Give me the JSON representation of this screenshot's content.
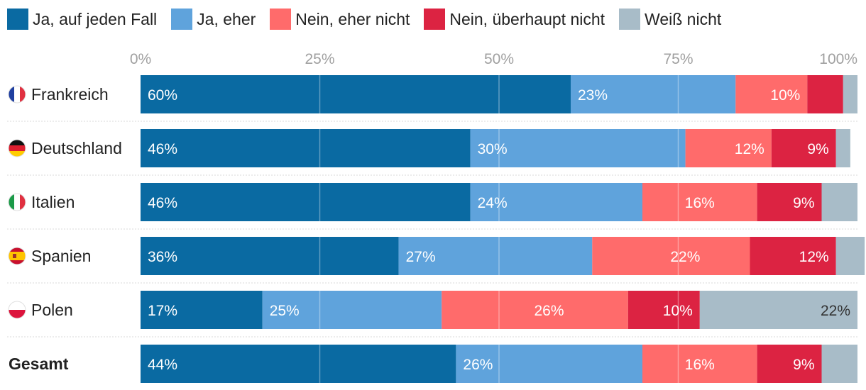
{
  "colors": {
    "ja_auf_jeden_fall": "#0a6aa2",
    "ja_eher": "#5fa3dc",
    "nein_eher_nicht": "#ff6b6b",
    "nein_ueberhaupt_nicht": "#dc2342",
    "weiss_nicht": "#a8bcc8",
    "gridline": "#e4e4e4",
    "tick_text": "#a0a0a0"
  },
  "chart_data": {
    "type": "bar",
    "orientation": "horizontal",
    "stacked": true,
    "title": "",
    "xlabel": "",
    "ylabel": "",
    "xlim": [
      0,
      100
    ],
    "x_ticks": [
      "0%",
      "25%",
      "50%",
      "75%",
      "100%"
    ],
    "legend_position": "top-left",
    "categories": [
      {
        "label": "Frankreich",
        "flag": "france-flag",
        "bold": false
      },
      {
        "label": "Deutschland",
        "flag": "germany-flag",
        "bold": false
      },
      {
        "label": "Italien",
        "flag": "italy-flag",
        "bold": false
      },
      {
        "label": "Spanien",
        "flag": "spain-flag",
        "bold": false
      },
      {
        "label": "Polen",
        "flag": "poland-flag",
        "bold": false
      },
      {
        "label": "Gesamt",
        "flag": null,
        "bold": true
      }
    ],
    "series": [
      {
        "name": "Ja, auf jeden Fall",
        "key": "ja_auf_jeden_fall",
        "text_color": "#ffffff",
        "values": [
          60,
          46,
          46,
          36,
          17,
          44
        ],
        "labels": [
          "60%",
          "46%",
          "46%",
          "36%",
          "17%",
          "44%"
        ]
      },
      {
        "name": "Ja, eher",
        "key": "ja_eher",
        "text_color": "#ffffff",
        "values": [
          23,
          30,
          24,
          27,
          25,
          26
        ],
        "labels": [
          "23%",
          "30%",
          "24%",
          "27%",
          "25%",
          "26%"
        ]
      },
      {
        "name": "Nein, eher nicht",
        "key": "nein_eher_nicht",
        "text_color": "#ffffff",
        "values": [
          10,
          12,
          16,
          22,
          26,
          16
        ],
        "labels": [
          "10%",
          "12%",
          "16%",
          "22%",
          "26%",
          "16%"
        ]
      },
      {
        "name": "Nein, überhaupt nicht",
        "key": "nein_ueberhaupt_nicht",
        "text_color": "#ffffff",
        "values": [
          5,
          9,
          9,
          12,
          10,
          9
        ],
        "labels": [
          "",
          "9%",
          "9%",
          "12%",
          "10%",
          "9%"
        ]
      },
      {
        "name": "Weiß nicht",
        "key": "weiss_nicht",
        "text_color": "#333333",
        "values": [
          2,
          2,
          5,
          4,
          22,
          5
        ],
        "labels": [
          "",
          "",
          "",
          "",
          "22%",
          ""
        ]
      }
    ]
  }
}
